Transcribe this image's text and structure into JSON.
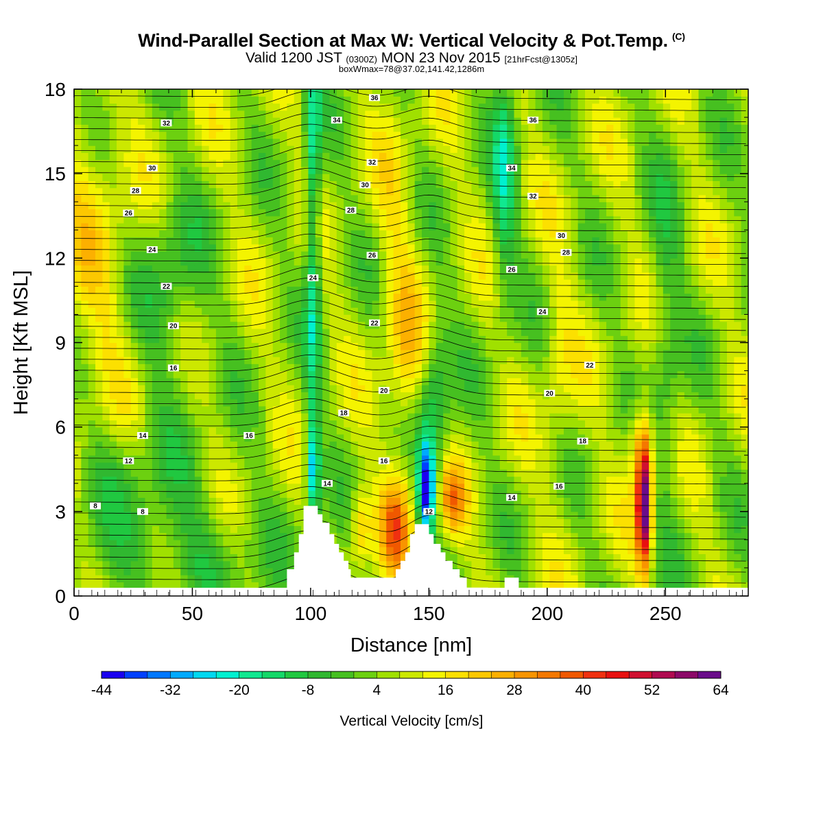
{
  "header": {
    "title": "Wind-Parallel Section at Max W: Vertical Velocity & Pot.Temp.",
    "copyright": "(C)",
    "valid_main": "Valid 1200 JST",
    "valid_utc": "(0300Z)",
    "valid_date": "MON 23 Nov 2015",
    "forecast": "[21hrFcst@1305z]",
    "boxinfo": "boxWmax=78@37.02,141.42,1286m"
  },
  "chart_data": {
    "type": "heatmap",
    "xlabel": "Distance [nm]",
    "ylabel": "Height [Kft MSL]",
    "xlim": [
      0,
      285
    ],
    "ylim": [
      0,
      18
    ],
    "xticks": [
      0,
      50,
      100,
      150,
      200,
      250
    ],
    "yticks": [
      0,
      3,
      6,
      9,
      12,
      15,
      18
    ],
    "colorbar": {
      "label": "Vertical Velocity [cm/s]",
      "tick_labels": [
        "-44",
        "-32",
        "-20",
        "-8",
        "4",
        "16",
        "28",
        "40",
        "52",
        "64"
      ],
      "levels_min": -48,
      "levels_step": 4,
      "colors": [
        "#1a00f0",
        "#0040ff",
        "#0078ff",
        "#00aaff",
        "#00d8f0",
        "#00f0d0",
        "#10e890",
        "#14d868",
        "#20c840",
        "#30b830",
        "#46c020",
        "#6cd010",
        "#a0e000",
        "#cce800",
        "#f4f400",
        "#fce000",
        "#fcc800",
        "#fcb000",
        "#f89400",
        "#f47800",
        "#f05800",
        "#f03010",
        "#e81010",
        "#d01030",
        "#b00a50",
        "#8c0868",
        "#6a0c8a"
      ]
    },
    "terrain_profile_kft": [
      [
        90,
        0
      ],
      [
        90,
        0.95
      ],
      [
        93,
        0.95
      ],
      [
        93,
        1.55
      ],
      [
        95,
        1.55
      ],
      [
        95,
        2.2
      ],
      [
        97,
        2.2
      ],
      [
        97,
        3.2
      ],
      [
        103,
        3.2
      ],
      [
        103,
        2.9
      ],
      [
        105,
        2.9
      ],
      [
        105,
        2.6
      ],
      [
        108,
        2.6
      ],
      [
        108,
        2.2
      ],
      [
        110,
        2.2
      ],
      [
        110,
        1.85
      ],
      [
        112,
        1.85
      ],
      [
        112,
        1.55
      ],
      [
        114,
        1.55
      ],
      [
        114,
        1.25
      ],
      [
        116,
        1.25
      ],
      [
        116,
        0.95
      ],
      [
        117,
        0.95
      ],
      [
        117,
        0.65
      ],
      [
        136,
        0.65
      ],
      [
        136,
        0.95
      ],
      [
        138,
        0.95
      ],
      [
        138,
        1.25
      ],
      [
        140,
        1.25
      ],
      [
        140,
        1.55
      ],
      [
        142,
        1.55
      ],
      [
        142,
        2.2
      ],
      [
        144,
        2.2
      ],
      [
        144,
        2.55
      ],
      [
        150,
        2.55
      ],
      [
        150,
        2.2
      ],
      [
        152,
        2.2
      ],
      [
        152,
        1.85
      ],
      [
        155,
        1.85
      ],
      [
        155,
        1.55
      ],
      [
        157,
        1.55
      ],
      [
        157,
        1.25
      ],
      [
        160,
        1.25
      ],
      [
        160,
        0.95
      ],
      [
        163,
        0.95
      ],
      [
        163,
        0.65
      ],
      [
        166,
        0.65
      ],
      [
        166,
        0.3
      ],
      [
        175,
        0.3
      ],
      [
        175,
        0
      ],
      [
        182,
        0
      ],
      [
        182,
        0.65
      ],
      [
        188,
        0.65
      ],
      [
        188,
        0
      ]
    ],
    "max_updraft_column": {
      "x_nm": 241,
      "value_cm_s": 64
    },
    "strong_downdraft_columns_nm": [
      101,
      149
    ],
    "isentrope_labels": [
      {
        "x": 9,
        "y": 3.2,
        "text": "8"
      },
      {
        "x": 29,
        "y": 3.0,
        "text": "8"
      },
      {
        "x": 23,
        "y": 4.8,
        "text": "12"
      },
      {
        "x": 29,
        "y": 5.7,
        "text": "14"
      },
      {
        "x": 74,
        "y": 5.7,
        "text": "16"
      },
      {
        "x": 42,
        "y": 8.1,
        "text": "16"
      },
      {
        "x": 42,
        "y": 9.6,
        "text": "20"
      },
      {
        "x": 39,
        "y": 11.0,
        "text": "22"
      },
      {
        "x": 33,
        "y": 12.3,
        "text": "24"
      },
      {
        "x": 23,
        "y": 13.6,
        "text": "26"
      },
      {
        "x": 26,
        "y": 14.4,
        "text": "28"
      },
      {
        "x": 33,
        "y": 15.2,
        "text": "30"
      },
      {
        "x": 39,
        "y": 16.8,
        "text": "32"
      },
      {
        "x": 107,
        "y": 4.0,
        "text": "14"
      },
      {
        "x": 114,
        "y": 6.5,
        "text": "18"
      },
      {
        "x": 131,
        "y": 4.8,
        "text": "16"
      },
      {
        "x": 131,
        "y": 7.3,
        "text": "20"
      },
      {
        "x": 127,
        "y": 9.7,
        "text": "22"
      },
      {
        "x": 101,
        "y": 11.3,
        "text": "24"
      },
      {
        "x": 126,
        "y": 12.1,
        "text": "26"
      },
      {
        "x": 117,
        "y": 13.7,
        "text": "28"
      },
      {
        "x": 123,
        "y": 14.6,
        "text": "30"
      },
      {
        "x": 126,
        "y": 15.4,
        "text": "32"
      },
      {
        "x": 111,
        "y": 16.9,
        "text": "34"
      },
      {
        "x": 127,
        "y": 17.7,
        "text": "36"
      },
      {
        "x": 150,
        "y": 3.0,
        "text": "12"
      },
      {
        "x": 185,
        "y": 3.5,
        "text": "14"
      },
      {
        "x": 205,
        "y": 3.9,
        "text": "16"
      },
      {
        "x": 215,
        "y": 5.5,
        "text": "18"
      },
      {
        "x": 201,
        "y": 7.2,
        "text": "20"
      },
      {
        "x": 218,
        "y": 8.2,
        "text": "22"
      },
      {
        "x": 198,
        "y": 10.1,
        "text": "24"
      },
      {
        "x": 185,
        "y": 11.6,
        "text": "26"
      },
      {
        "x": 208,
        "y": 12.2,
        "text": "28"
      },
      {
        "x": 206,
        "y": 12.8,
        "text": "30"
      },
      {
        "x": 194,
        "y": 14.2,
        "text": "32"
      },
      {
        "x": 185,
        "y": 15.2,
        "text": "34"
      },
      {
        "x": 194,
        "y": 16.9,
        "text": "36"
      }
    ]
  }
}
